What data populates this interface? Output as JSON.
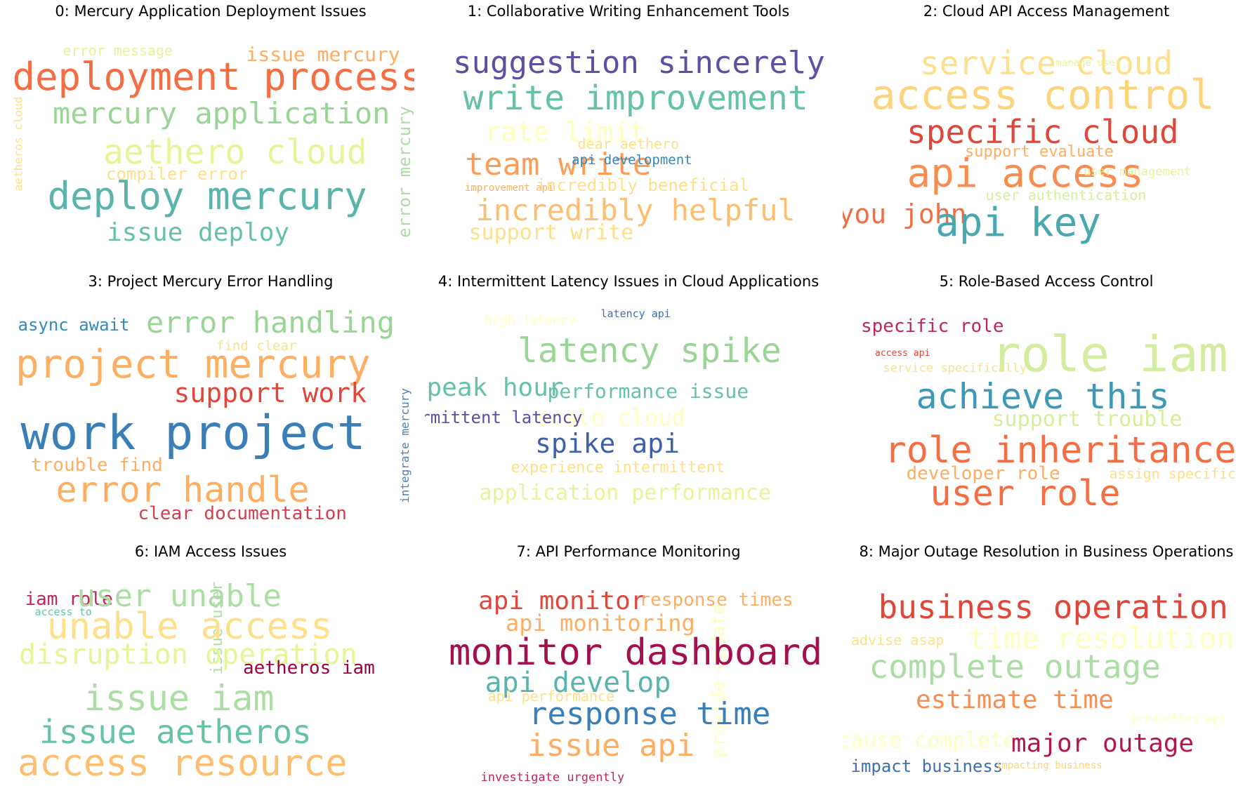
{
  "chart_data": {
    "type": "wordcloud",
    "panels": [
      {
        "title": "0: Mercury Application Deployment Issues",
        "words": [
          {
            "text": "deployment process",
            "color": "#f46d43"
          },
          {
            "text": "mercury application",
            "color": "#99d594"
          },
          {
            "text": "aethero cloud",
            "color": "#e6f598"
          },
          {
            "text": "deploy mercury",
            "color": "#5ab4ac"
          },
          {
            "text": "issue deploy",
            "color": "#66c2a5"
          },
          {
            "text": "issue mercury",
            "color": "#fdae61"
          },
          {
            "text": "error message",
            "color": "#e6f598"
          },
          {
            "text": "compiler error",
            "color": "#fee08b"
          },
          {
            "text": "error mercury",
            "color": "#abdda4"
          },
          {
            "text": "aetheros cloud",
            "color": "#fee08b"
          }
        ]
      },
      {
        "title": "1: Collaborative Writing Enhancement Tools",
        "words": [
          {
            "text": "suggestion sincerely",
            "color": "#5e4fa2"
          },
          {
            "text": "write improvement",
            "color": "#66c2a5"
          },
          {
            "text": "rate limit",
            "color": "#ffffbf"
          },
          {
            "text": "dear aethero",
            "color": "#fee08b"
          },
          {
            "text": "team write",
            "color": "#f99d59"
          },
          {
            "text": "api development",
            "color": "#3288bd"
          },
          {
            "text": "improvement api",
            "color": "#fdae61"
          },
          {
            "text": "incredibly beneficial",
            "color": "#fee08b"
          },
          {
            "text": "incredibly helpful",
            "color": "#fdbf6f"
          },
          {
            "text": "support write",
            "color": "#fee08b"
          }
        ]
      },
      {
        "title": "2: Cloud API Access Management",
        "words": [
          {
            "text": "service cloud",
            "color": "#fee08b"
          },
          {
            "text": "manage user",
            "color": "#e6f598"
          },
          {
            "text": "access control",
            "color": "#fdd37b"
          },
          {
            "text": "specific cloud",
            "color": "#e0473b"
          },
          {
            "text": "support evaluate",
            "color": "#fdae61"
          },
          {
            "text": "api access",
            "color": "#f88d52"
          },
          {
            "text": "user management",
            "color": "#e6f598"
          },
          {
            "text": "user authentication",
            "color": "#d6ee9b"
          },
          {
            "text": "you john",
            "color": "#f26d44"
          },
          {
            "text": "api key",
            "color": "#4aa7b0"
          }
        ]
      },
      {
        "title": "3: Project Mercury Error Handling",
        "words": [
          {
            "text": "async await",
            "color": "#3288bd"
          },
          {
            "text": "error handling",
            "color": "#99d594"
          },
          {
            "text": "find clear",
            "color": "#fee08b"
          },
          {
            "text": "project mercury",
            "color": "#fdae61"
          },
          {
            "text": "support work",
            "color": "#e0473b"
          },
          {
            "text": "work project",
            "color": "#3a7fb8"
          },
          {
            "text": "trouble find",
            "color": "#fdae61"
          },
          {
            "text": "error handle",
            "color": "#fdae61"
          },
          {
            "text": "clear documentation",
            "color": "#d53e4f"
          },
          {
            "text": "integrate mercury",
            "color": "#4a7eb5"
          }
        ]
      },
      {
        "title": "4: Intermittent Latency Issues in Cloud Applications",
        "words": [
          {
            "text": "high latency",
            "color": "#ffffbf"
          },
          {
            "text": "latency api",
            "color": "#3f6fb0"
          },
          {
            "text": "latency spike",
            "color": "#99d594"
          },
          {
            "text": "peak hour",
            "color": "#66c2a5"
          },
          {
            "text": "performance issue",
            "color": "#66c2a5"
          },
          {
            "text": "scale cloud",
            "color": "#ffffbf"
          },
          {
            "text": "spike api",
            "color": "#3f5fa8"
          },
          {
            "text": "experience intermittent",
            "color": "#fee08b"
          },
          {
            "text": "application performance",
            "color": "#e6f598"
          },
          {
            "text": "intermittent latency",
            "color": "#5e4fa2"
          }
        ]
      },
      {
        "title": "5: Role-Based Access Control",
        "words": [
          {
            "text": "specific role",
            "color": "#c2255c"
          },
          {
            "text": "role iam",
            "color": "#d3eda0"
          },
          {
            "text": "access api",
            "color": "#e0473b"
          },
          {
            "text": "service specifically",
            "color": "#fee08b"
          },
          {
            "text": "achieve this",
            "color": "#3f98b8"
          },
          {
            "text": "support trouble",
            "color": "#d6ee9b"
          },
          {
            "text": "role inheritance",
            "color": "#f46d43"
          },
          {
            "text": "developer role",
            "color": "#fdae61"
          },
          {
            "text": "assign specific",
            "color": "#fee08b"
          },
          {
            "text": "user role",
            "color": "#f46d43"
          }
        ]
      },
      {
        "title": "6: IAM Access Issues",
        "words": [
          {
            "text": "iam role",
            "color": "#c2255c"
          },
          {
            "text": "user unable",
            "color": "#abdda4"
          },
          {
            "text": "access to",
            "color": "#66c2a5"
          },
          {
            "text": "issue user",
            "color": "#abdda4"
          },
          {
            "text": "unable access",
            "color": "#fee08b"
          },
          {
            "text": "disruption operation",
            "color": "#e6f598"
          },
          {
            "text": "aetheros iam",
            "color": "#9e0142"
          },
          {
            "text": "issue iam",
            "color": "#abdda4"
          },
          {
            "text": "issue aetheros",
            "color": "#66c2a5"
          },
          {
            "text": "access resource",
            "color": "#fdbf6f"
          }
        ]
      },
      {
        "title": "7: API Performance Monitoring",
        "words": [
          {
            "text": "api monitor",
            "color": "#e0473b"
          },
          {
            "text": "response times",
            "color": "#fdae61"
          },
          {
            "text": "provide update",
            "color": "#ffffbf"
          },
          {
            "text": "api monitoring",
            "color": "#fdae61"
          },
          {
            "text": "monitor dashboard",
            "color": "#a50f4f"
          },
          {
            "text": "api develop",
            "color": "#5ab4ac"
          },
          {
            "text": "api performance",
            "color": "#fee08b"
          },
          {
            "text": "response time",
            "color": "#3a7fb8"
          },
          {
            "text": "issue api",
            "color": "#fdae61"
          },
          {
            "text": "investigate urgently",
            "color": "#c2255c"
          }
        ]
      },
      {
        "title": "8: Major Outage Resolution in Business Operations",
        "words": [
          {
            "text": "business operation",
            "color": "#e0473b"
          },
          {
            "text": "advise asap",
            "color": "#fee08b"
          },
          {
            "text": "time resolution",
            "color": "#ffffbf"
          },
          {
            "text": "complete outage",
            "color": "#abdda4"
          },
          {
            "text": "estimate time",
            "color": "#f88d52"
          },
          {
            "text": "production api",
            "color": "#ffffbf"
          },
          {
            "text": "cause complete",
            "color": "#ffffbf"
          },
          {
            "text": "major outage",
            "color": "#b5174d"
          },
          {
            "text": "impact business",
            "color": "#3f6fb0"
          },
          {
            "text": "impacting business",
            "color": "#fdd37b"
          }
        ]
      }
    ]
  }
}
